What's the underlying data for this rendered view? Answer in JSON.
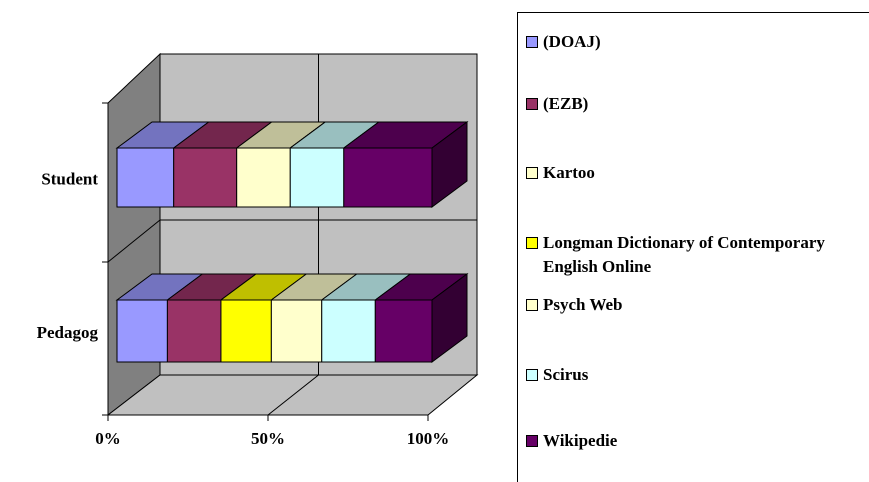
{
  "chart_data": {
    "type": "stacked_bar_3d_horizontal",
    "categories": [
      "Student",
      "Pedagog"
    ],
    "series": [
      {
        "name": "(DOAJ)",
        "color": "#9999ff",
        "values": [
          18,
          16
        ]
      },
      {
        "name": "(EZB)",
        "color": "#993366",
        "values": [
          20,
          17
        ]
      },
      {
        "name": "Kartoo",
        "color": "#ffffcc",
        "values": [
          17,
          0
        ]
      },
      {
        "name": "Longman Dictionary of Contemporary English Online",
        "color": "#ffff00",
        "values": [
          0,
          16
        ]
      },
      {
        "name": "Psych Web",
        "color": "#ffffcc",
        "values": [
          0,
          16
        ]
      },
      {
        "name": "Scirus",
        "color": "#ccffff",
        "values": [
          17,
          17
        ]
      },
      {
        "name": "Wikipedie",
        "color": "#660066",
        "values": [
          28,
          18
        ]
      }
    ],
    "xlim": [
      0,
      100
    ],
    "xticks": [
      {
        "value": 0,
        "label": "0%"
      },
      {
        "value": 50,
        "label": "50%"
      },
      {
        "value": 100,
        "label": "100%"
      }
    ],
    "grid": true,
    "legend": "right"
  }
}
